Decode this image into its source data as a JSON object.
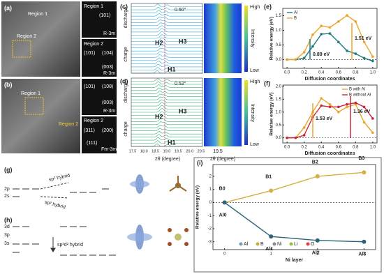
{
  "figure": {
    "a": {
      "label": "(a)",
      "region1": "Region 1",
      "region2": "Region 2",
      "inset1_title": "Region 1",
      "inset1_index": "(101)",
      "inset1_phase": "R-3m",
      "inset2_title": "Region 2",
      "inset2_indices": [
        "(101)",
        "(104)",
        "(003)"
      ],
      "inset2_phase": "R-3m"
    },
    "b": {
      "label": "(b)",
      "region1": "Region 1",
      "region2": "Region 2",
      "inset1_indices": [
        "(101)",
        "(108)",
        "(003)"
      ],
      "inset1_phase": "R-3m",
      "inset2_title": "Region 2",
      "inset2_indices": [
        "(311)",
        "(200)",
        "(111)"
      ],
      "inset2_phase": "Fm-3m"
    },
    "c": {
      "label": "(c)",
      "angle": "0.60°",
      "discharge": "discharge",
      "charge": "charge",
      "phases": [
        "H2",
        "H3",
        "H1"
      ],
      "colorbar": [
        "High",
        "Intensity",
        "Low"
      ]
    },
    "d": {
      "label": "(d)",
      "angle": "0.52°",
      "discharge": "discharge",
      "charge": "charge",
      "phases": [
        "H2",
        "H3",
        "H1"
      ],
      "colorbar": [
        "High",
        "Intensity",
        "Low"
      ],
      "xticks": [
        "17.5",
        "18.0",
        "18.5",
        "19.0",
        "19.5",
        "20.0",
        "20.5"
      ],
      "xlabel": "2θ (degree)",
      "heat_xtick": "19.5",
      "heat_xlabel": "2θ (degree)"
    },
    "g": {
      "label": "(g)",
      "orbitals": [
        "2p",
        "2s"
      ],
      "hybrids": [
        "sp² hybrid",
        "sp² hybrid"
      ]
    },
    "h": {
      "label": "(h)",
      "orbitals": [
        "3d",
        "3p",
        "3s"
      ],
      "hybrid": "sp³d² hybrid"
    }
  },
  "chart_data": [
    {
      "type": "line",
      "label": "(e)",
      "xlabel": "Diffusion coordinates",
      "ylabel": "Relative energy (eV)",
      "x": [
        0,
        0.1,
        0.2,
        0.3,
        0.4,
        0.5,
        0.6,
        0.7,
        0.8,
        0.9,
        1.0
      ],
      "series": [
        {
          "name": "Al",
          "color": "#1f7a80",
          "values": [
            0,
            0,
            0.05,
            0.45,
            0.87,
            0.89,
            0.6,
            0.3,
            0.2,
            0.05,
            -0.05
          ]
        },
        {
          "name": "B",
          "color": "#eba52a",
          "values": [
            0,
            0,
            0.25,
            0.85,
            1.15,
            1.1,
            1.3,
            1.51,
            1.3,
            0.6,
            0.1
          ]
        }
      ],
      "xlim": [
        -0.05,
        1.05
      ],
      "xticks": [
        {
          "value": 0,
          "label": "0.0"
        },
        0.2,
        0.4,
        0.6,
        0.8,
        {
          "value": 1,
          "label": "1.0"
        }
      ],
      "ylim": [
        -0.3,
        1.75
      ],
      "yticks": [
        {
          "value": 0,
          "label": "0.0"
        },
        0.5,
        {
          "value": 1,
          "label": "1.0"
        },
        1.5
      ],
      "annotations": [
        "0.89 eV",
        "1.51 eV"
      ],
      "legend": "upper left"
    },
    {
      "type": "line",
      "label": "(f)",
      "xlabel": "Diffusion coordinates",
      "ylabel": "Relative energy (eV)",
      "x": [
        0,
        0.1,
        0.2,
        0.3,
        0.4,
        0.5,
        0.6,
        0.7,
        0.8,
        0.9,
        1.0
      ],
      "series": [
        {
          "name": "B with Al",
          "color": "#eba52a",
          "values": [
            0,
            0,
            0.4,
            1.0,
            1.53,
            1.3,
            1.0,
            1.2,
            1.3,
            0.6,
            0.2
          ]
        },
        {
          "name": "B without Al",
          "color": "#c8283c",
          "values": [
            0,
            0,
            0.1,
            0.8,
            1.25,
            1.2,
            1.2,
            1.3,
            1.36,
            1.2,
            0.75
          ]
        }
      ],
      "xlim": [
        -0.05,
        1.05
      ],
      "xticks": [
        {
          "value": 0,
          "label": "0.0"
        },
        0.2,
        0.4,
        0.6,
        0.8,
        {
          "value": 1,
          "label": "1.0"
        }
      ],
      "ylim": [
        -0.2,
        2.05
      ],
      "yticks": [
        {
          "value": 0,
          "label": "0.0"
        },
        0.5,
        {
          "value": 1,
          "label": "1.0"
        },
        1.5,
        {
          "value": 2,
          "label": "2.0"
        }
      ],
      "annotations": [
        "1.53 eV",
        "1.36 eV"
      ],
      "legend": "upper right"
    },
    {
      "type": "line",
      "label": "(i)",
      "xlabel": "Ni layer",
      "ylabel": "Relative energy (eV)",
      "x": [
        0,
        1,
        2,
        3
      ],
      "series": [
        {
          "name": "B",
          "color": "#d4b040",
          "values": [
            0,
            0.9,
            2.0,
            2.3
          ],
          "labels": [
            "B0",
            "B1",
            "B2",
            "B3"
          ]
        },
        {
          "name": "Al",
          "color": "#2a6478",
          "values": [
            0,
            -2.6,
            -2.9,
            -3.0
          ],
          "labels": [
            "Al0",
            "Al1",
            "Al2",
            "Al3"
          ]
        }
      ],
      "xlim": [
        -0.25,
        3.25
      ],
      "xticks": [
        0,
        1,
        2,
        3
      ],
      "ylim": [
        -3.6,
        2.9
      ],
      "yticks": [
        -3,
        -2,
        -1,
        0,
        1,
        2
      ],
      "atom_legend": [
        "Al",
        "B",
        "Ni",
        "Li",
        "O"
      ],
      "atom_colors": [
        "#7a9fb0",
        "#c8b040",
        "#8a8a8a",
        "#90c040",
        "#e04040"
      ]
    }
  ]
}
